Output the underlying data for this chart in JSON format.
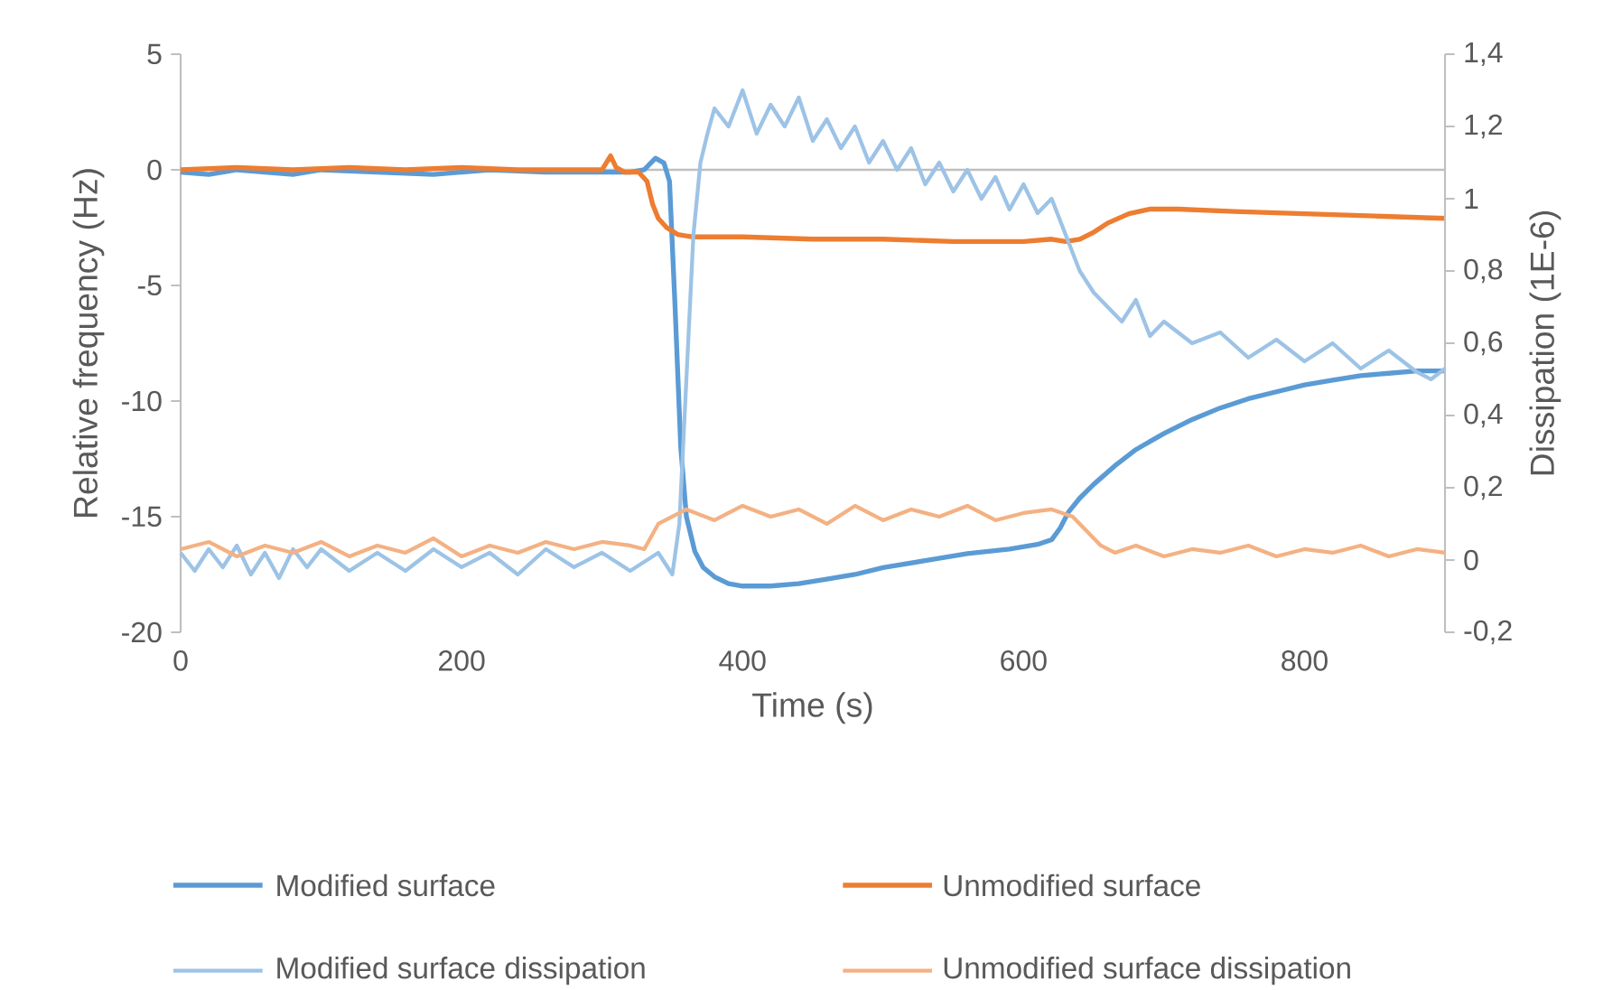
{
  "chart_data": {
    "type": "line",
    "xlabel": "Time (s)",
    "ylabel": "Relative frequency (Hz)",
    "y2label": "Dissipation (1E-6)",
    "xlim": [
      0,
      900
    ],
    "xticks": [
      0,
      200,
      400,
      600,
      800
    ],
    "ylim": [
      -20,
      5
    ],
    "yticks": [
      -20,
      -15,
      -10,
      -5,
      0,
      5
    ],
    "y2lim": [
      -0.2,
      1.4
    ],
    "y2ticks": [
      {
        "value": -0.2,
        "label": "-0,2"
      },
      0,
      {
        "value": 0.2,
        "label": "0,2"
      },
      {
        "value": 0.4,
        "label": "0,4"
      },
      {
        "value": 0.6,
        "label": "0,6"
      },
      {
        "value": 0.8,
        "label": "0,8"
      },
      1,
      {
        "value": 1.2,
        "label": "1,2"
      },
      {
        "value": 1.4,
        "label": "1,4"
      }
    ],
    "grid": false,
    "legend": "bottom",
    "marker": "none",
    "line_style": "solid",
    "ref_lines": [
      {
        "axis": "y",
        "value": 0,
        "color": "#bfbfbf"
      }
    ],
    "series": [
      {
        "name": "Modified surface",
        "color": "#5b9bd5",
        "x": [
          0,
          20,
          40,
          60,
          80,
          100,
          140,
          180,
          220,
          260,
          300,
          320,
          330,
          338,
          344,
          348,
          352,
          356,
          360,
          366,
          372,
          380,
          390,
          400,
          420,
          440,
          460,
          480,
          500,
          530,
          560,
          590,
          610,
          620,
          626,
          632,
          640,
          650,
          665,
          680,
          700,
          720,
          740,
          760,
          780,
          800,
          820,
          840,
          860,
          880,
          900
        ],
        "values": [
          -0.1,
          -0.2,
          0,
          -0.1,
          -0.2,
          0,
          -0.1,
          -0.2,
          0,
          -0.1,
          -0.1,
          -0.1,
          0,
          0.5,
          0.3,
          -0.5,
          -6,
          -12,
          -15,
          -16.5,
          -17.2,
          -17.6,
          -17.9,
          -18,
          -18,
          -17.9,
          -17.7,
          -17.5,
          -17.2,
          -16.9,
          -16.6,
          -16.4,
          -16.2,
          -16,
          -15.5,
          -14.8,
          -14.2,
          -13.6,
          -12.8,
          -12.1,
          -11.4,
          -10.8,
          -10.3,
          -9.9,
          -9.6,
          -9.3,
          -9.1,
          -8.9,
          -8.8,
          -8.7,
          -8.7
        ]
      },
      {
        "name": "Unmodified surface",
        "color": "#ed7d31",
        "x": [
          0,
          40,
          80,
          120,
          160,
          200,
          240,
          280,
          300,
          306,
          310,
          316,
          326,
          332,
          336,
          340,
          346,
          354,
          364,
          380,
          400,
          450,
          500,
          550,
          600,
          620,
          630,
          640,
          650,
          660,
          675,
          690,
          710,
          750,
          800,
          850,
          900
        ],
        "values": [
          0,
          0.1,
          0,
          0.1,
          0,
          0.1,
          0,
          0,
          0,
          0.6,
          0.1,
          -0.1,
          -0.1,
          -0.5,
          -1.5,
          -2.1,
          -2.5,
          -2.8,
          -2.9,
          -2.9,
          -2.9,
          -3,
          -3,
          -3.1,
          -3.1,
          -3,
          -3.1,
          -3,
          -2.7,
          -2.3,
          -1.9,
          -1.7,
          -1.7,
          -1.8,
          -1.9,
          -2,
          -2.1
        ]
      },
      {
        "name": "Modified surface dissipation",
        "color": "#9dc3e6",
        "axis": "y2",
        "x": [
          0,
          10,
          20,
          30,
          40,
          50,
          60,
          70,
          80,
          90,
          100,
          120,
          140,
          160,
          180,
          200,
          220,
          240,
          260,
          280,
          300,
          320,
          340,
          350,
          355,
          360,
          365,
          370,
          375,
          380,
          390,
          400,
          410,
          420,
          430,
          440,
          450,
          460,
          470,
          480,
          490,
          500,
          510,
          520,
          530,
          540,
          550,
          560,
          570,
          580,
          590,
          600,
          610,
          620,
          630,
          640,
          650,
          660,
          670,
          680,
          690,
          700,
          720,
          740,
          760,
          780,
          800,
          820,
          840,
          860,
          880,
          890,
          900
        ],
        "values": [
          0.02,
          -0.03,
          0.03,
          -0.02,
          0.04,
          -0.04,
          0.02,
          -0.05,
          0.03,
          -0.02,
          0.03,
          -0.03,
          0.02,
          -0.03,
          0.03,
          -0.02,
          0.02,
          -0.04,
          0.03,
          -0.02,
          0.02,
          -0.03,
          0.02,
          -0.04,
          0.1,
          0.5,
          0.9,
          1.1,
          1.18,
          1.25,
          1.2,
          1.3,
          1.18,
          1.26,
          1.2,
          1.28,
          1.16,
          1.22,
          1.14,
          1.2,
          1.1,
          1.16,
          1.08,
          1.14,
          1.04,
          1.1,
          1.02,
          1.08,
          1.0,
          1.06,
          0.97,
          1.04,
          0.96,
          1.0,
          0.9,
          0.8,
          0.74,
          0.7,
          0.66,
          0.72,
          0.62,
          0.66,
          0.6,
          0.63,
          0.56,
          0.61,
          0.55,
          0.6,
          0.53,
          0.58,
          0.52,
          0.5,
          0.53
        ]
      },
      {
        "name": "Unmodified surface dissipation",
        "color": "#f4b183",
        "axis": "y2",
        "x": [
          0,
          20,
          40,
          60,
          80,
          100,
          120,
          140,
          160,
          180,
          200,
          220,
          240,
          260,
          280,
          300,
          320,
          330,
          340,
          350,
          360,
          380,
          400,
          420,
          440,
          460,
          480,
          500,
          520,
          540,
          560,
          580,
          600,
          620,
          635,
          645,
          655,
          665,
          680,
          700,
          720,
          740,
          760,
          780,
          800,
          820,
          840,
          860,
          880,
          900
        ],
        "values": [
          0.03,
          0.05,
          0.01,
          0.04,
          0.02,
          0.05,
          0.01,
          0.04,
          0.02,
          0.06,
          0.01,
          0.04,
          0.02,
          0.05,
          0.03,
          0.05,
          0.04,
          0.03,
          0.1,
          0.12,
          0.14,
          0.11,
          0.15,
          0.12,
          0.14,
          0.1,
          0.15,
          0.11,
          0.14,
          0.12,
          0.15,
          0.11,
          0.13,
          0.14,
          0.12,
          0.08,
          0.04,
          0.02,
          0.04,
          0.01,
          0.03,
          0.02,
          0.04,
          0.01,
          0.03,
          0.02,
          0.04,
          0.01,
          0.03,
          0.02
        ]
      }
    ]
  }
}
